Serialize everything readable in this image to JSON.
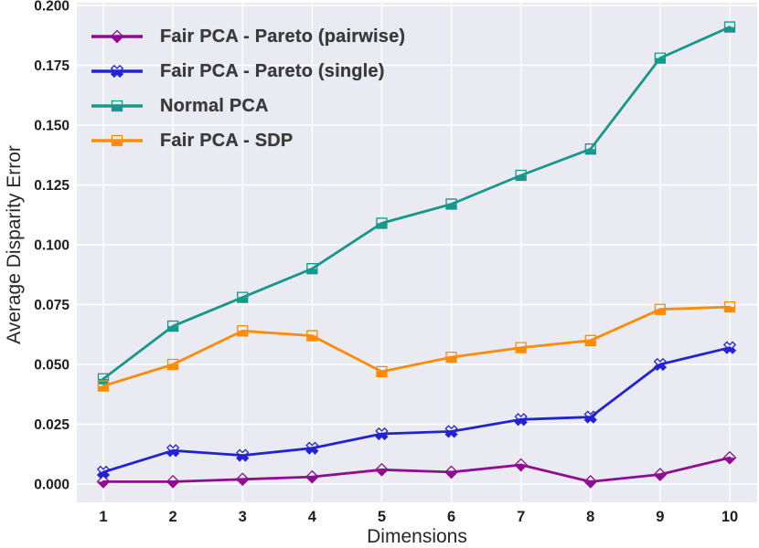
{
  "figure": {
    "background": "#ffffff",
    "plot_background": "#eaeaf2",
    "grid_color": "#ffffff"
  },
  "chart_data": {
    "type": "line",
    "title": "",
    "xlabel": "Dimensions",
    "ylabel": "Average Disparity Error",
    "x": [
      1,
      2,
      3,
      4,
      5,
      6,
      7,
      8,
      9,
      10
    ],
    "xticks": [
      "1",
      "2",
      "3",
      "4",
      "5",
      "6",
      "7",
      "8",
      "9",
      "10"
    ],
    "ytick_values": [
      0.0,
      0.025,
      0.05,
      0.075,
      0.1,
      0.125,
      0.15,
      0.175,
      0.2
    ],
    "yticks": [
      "0.000",
      "0.025",
      "0.050",
      "0.075",
      "0.100",
      "0.125",
      "0.150",
      "0.175",
      "0.200"
    ],
    "ylim": [
      0,
      0.2
    ],
    "grid": true,
    "legend_position": "upper-left",
    "series": [
      {
        "name": "Fair PCA - Pareto (pairwise)",
        "color": "#8e0d90",
        "marker": "diamond",
        "values": [
          0.001,
          0.001,
          0.002,
          0.003,
          0.006,
          0.005,
          0.008,
          0.001,
          0.004,
          0.011
        ]
      },
      {
        "name": "Fair PCA - Pareto (single)",
        "color": "#2323d3",
        "marker": "x",
        "values": [
          0.005,
          0.014,
          0.012,
          0.015,
          0.021,
          0.022,
          0.027,
          0.028,
          0.05,
          0.057
        ]
      },
      {
        "name": "Normal PCA",
        "color": "#17988b",
        "marker": "square",
        "values": [
          0.044,
          0.066,
          0.078,
          0.09,
          0.109,
          0.117,
          0.129,
          0.14,
          0.178,
          0.191
        ]
      },
      {
        "name": "Fair PCA - SDP",
        "color": "#ff8c05",
        "marker": "square",
        "values": [
          0.041,
          0.05,
          0.064,
          0.062,
          0.047,
          0.053,
          0.057,
          0.06,
          0.073,
          0.074
        ]
      }
    ]
  }
}
